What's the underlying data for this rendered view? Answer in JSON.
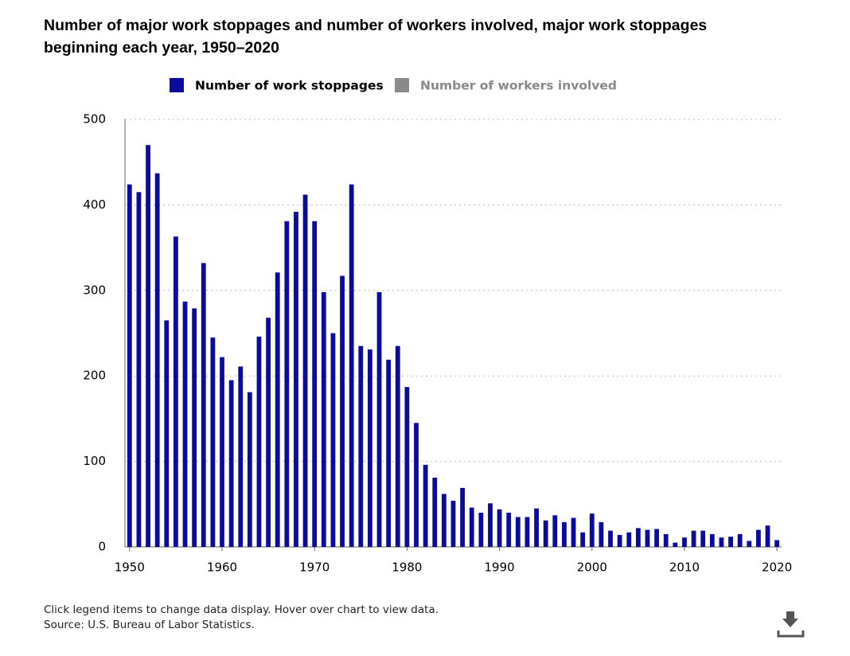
{
  "chart_data": {
    "type": "bar",
    "title": "Number of major work stoppages and number of workers involved, major work stoppages beginning each year, 1950–2020",
    "x": [
      1950,
      1951,
      1952,
      1953,
      1954,
      1955,
      1956,
      1957,
      1958,
      1959,
      1960,
      1961,
      1962,
      1963,
      1964,
      1965,
      1966,
      1967,
      1968,
      1969,
      1970,
      1971,
      1972,
      1973,
      1974,
      1975,
      1976,
      1977,
      1978,
      1979,
      1980,
      1981,
      1982,
      1983,
      1984,
      1985,
      1986,
      1987,
      1988,
      1989,
      1990,
      1991,
      1992,
      1993,
      1994,
      1995,
      1996,
      1997,
      1998,
      1999,
      2000,
      2001,
      2002,
      2003,
      2004,
      2005,
      2006,
      2007,
      2008,
      2009,
      2010,
      2011,
      2012,
      2013,
      2014,
      2015,
      2016,
      2017,
      2018,
      2019,
      2020
    ],
    "series": [
      {
        "name": "Number of work stoppages",
        "color": "#0b0b9e",
        "visible": true,
        "values": [
          424,
          415,
          470,
          437,
          265,
          363,
          287,
          279,
          332,
          245,
          222,
          195,
          211,
          181,
          246,
          268,
          321,
          381,
          392,
          412,
          381,
          298,
          250,
          317,
          424,
          235,
          231,
          298,
          219,
          235,
          187,
          145,
          96,
          81,
          62,
          54,
          69,
          46,
          40,
          51,
          44,
          40,
          35,
          35,
          45,
          31,
          37,
          29,
          34,
          17,
          39,
          29,
          19,
          14,
          17,
          22,
          20,
          21,
          15,
          5,
          11,
          19,
          19,
          15,
          11,
          12,
          15,
          7,
          20,
          25,
          8
        ]
      },
      {
        "name": "Number of workers involved",
        "color": "#8a8a8a",
        "visible": false
      }
    ],
    "xlim": [
      1949.5,
      2020.5
    ],
    "xticks": [
      1950,
      1960,
      1970,
      1980,
      1990,
      2000,
      2010,
      2020
    ],
    "ylim": [
      0,
      500
    ],
    "yticks": [
      0,
      100,
      200,
      300,
      400,
      500
    ],
    "grid": true,
    "note": "Click legend items to change data display. Hover over chart to view data.",
    "source": "Source: U.S. Bureau of Labor Statistics."
  }
}
